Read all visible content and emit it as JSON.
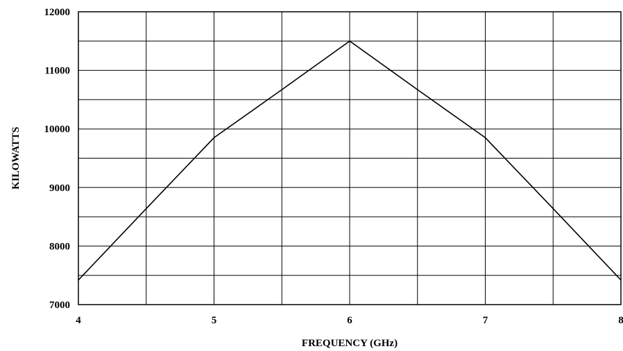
{
  "chart_data": {
    "type": "line",
    "title": "",
    "xlabel": "FREQUENCY (GHz)",
    "ylabel": "KILOWATTS",
    "xlim": [
      4,
      8
    ],
    "ylim": [
      7000,
      12000
    ],
    "x_ticks": [
      4,
      5,
      6,
      7,
      8
    ],
    "y_ticks": [
      7000,
      8000,
      9000,
      10000,
      11000,
      12000
    ],
    "x_tick_labels": [
      "4",
      "5",
      "6",
      "7",
      "8"
    ],
    "y_tick_labels": [
      "7000",
      "8000",
      "9000",
      "10000",
      "11000",
      "12000"
    ],
    "grid": true,
    "series": [
      {
        "x": [
          4,
          4.5,
          5,
          5.5,
          6,
          6.5,
          7,
          7.5,
          8
        ],
        "y": [
          7420,
          8640,
          9850,
          10670,
          11500,
          10670,
          9850,
          8640,
          7420
        ]
      }
    ],
    "colors": {
      "line": "#000000",
      "grid": "#000000",
      "background": "#ffffff"
    }
  }
}
